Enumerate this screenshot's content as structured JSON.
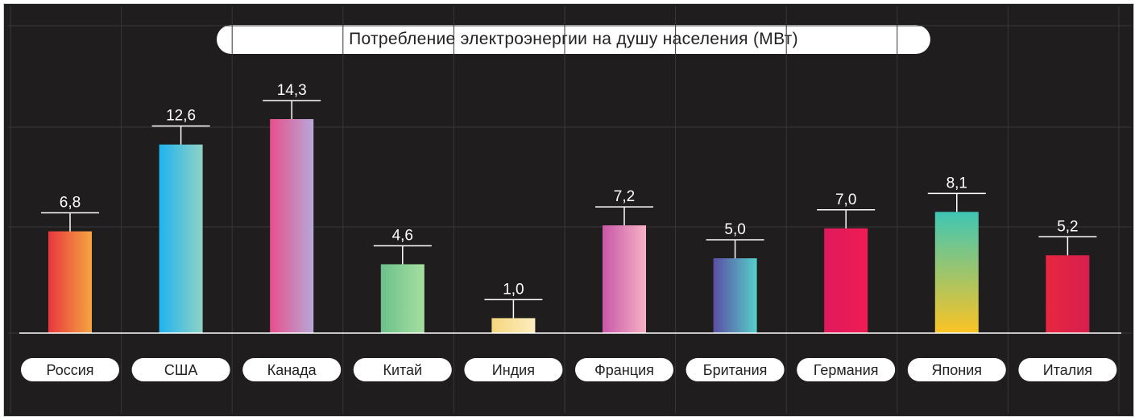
{
  "chart_data": {
    "type": "bar",
    "title": "Потребление электроэнергии на душу населения (МВт)",
    "xlabel": "",
    "ylabel": "",
    "ylim": [
      0,
      20
    ],
    "grid": true,
    "categories": [
      "Россия",
      "США",
      "Канада",
      "Китай",
      "Индия",
      "Франция",
      "Британия",
      "Германия",
      "Япония",
      "Италия"
    ],
    "values": [
      6.8,
      12.6,
      14.3,
      4.6,
      1.0,
      7.2,
      5.0,
      7.0,
      8.1,
      5.2
    ],
    "value_labels": [
      "6,8",
      "12,6",
      "14,3",
      "4,6",
      "1,0",
      "7,2",
      "5,0",
      "7,0",
      "8,1",
      "5,2"
    ],
    "bar_gradients": [
      [
        "#e8373f",
        "#f4a640",
        "horizontal"
      ],
      [
        "#1fb3ee",
        "#8fd3c4",
        "horizontal"
      ],
      [
        "#e84f8c",
        "#b7a8d8",
        "horizontal"
      ],
      [
        "#6cc08c",
        "#a6dfa0",
        "horizontal"
      ],
      [
        "#f6d67e",
        "#fdeec0",
        "horizontal"
      ],
      [
        "#c957a8",
        "#f6b2c4",
        "horizontal"
      ],
      [
        "#5b4ea3",
        "#56cfc9",
        "horizontal"
      ],
      [
        "#e0195d",
        "#ef1c52",
        "horizontal"
      ],
      [
        "#3fc6b4",
        "#fbc425",
        "vertical"
      ],
      [
        "#e8273f",
        "#d61f4e",
        "horizontal"
      ]
    ],
    "colors": {
      "background": "#1f1d1e",
      "grid": "#383637",
      "axis": "#ffffff",
      "label_bg": "#ffffff",
      "label_text": "#222222"
    }
  }
}
